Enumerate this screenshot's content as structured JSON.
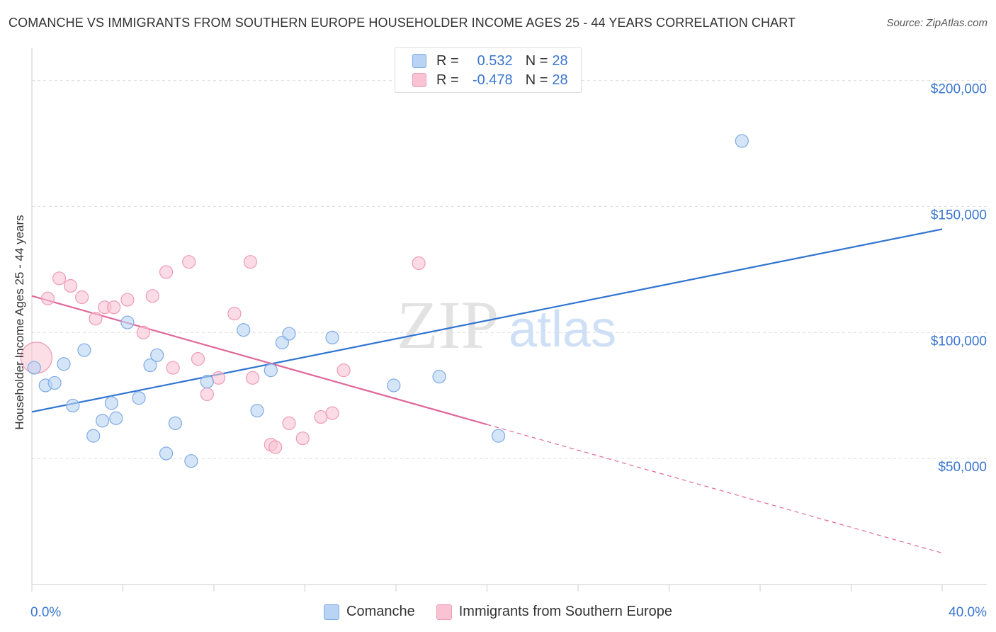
{
  "title": "COMANCHE VS IMMIGRANTS FROM SOUTHERN EUROPE HOUSEHOLDER INCOME AGES 25 - 44 YEARS CORRELATION CHART",
  "source": "Source: ZipAtlas.com",
  "watermark": {
    "zip": "ZIP",
    "atlas": "atlas"
  },
  "legend_top": [
    {
      "r_label": "R =",
      "r_value": "0.532",
      "n_label": "N =",
      "n_value": "28"
    },
    {
      "r_label": "R =",
      "r_value": "-0.478",
      "n_label": "N =",
      "n_value": "28"
    }
  ],
  "legend_bottom": [
    {
      "label": "Comanche"
    },
    {
      "label": "Immigrants from Southern Europe"
    }
  ],
  "colors": {
    "comanche_fill": "#b9d3f4",
    "comanche_stroke": "#7eaae6",
    "comanche_line": "#2f74d0",
    "immigrants_fill": "#f9c3d4",
    "immigrants_stroke": "#ef9bb5",
    "immigrants_line": "#e0679a",
    "tick_label": "#3a76d0",
    "grid": "#dddddd"
  },
  "chart_data": {
    "type": "scatter",
    "xlabel": "",
    "ylabel": "Householder Income Ages 25 - 44 years",
    "x_unit": "percent",
    "xlim": [
      0,
      40
    ],
    "ylim": [
      0,
      210000
    ],
    "x_tick_labels": [
      {
        "value": 0,
        "label": "0.0%"
      },
      {
        "value": 40,
        "label": "40.0%"
      }
    ],
    "y_tick_labels": [
      {
        "value": 50000,
        "label": "$50,000"
      },
      {
        "value": 100000,
        "label": "$100,000"
      },
      {
        "value": 150000,
        "label": "$150,000"
      },
      {
        "value": 200000,
        "label": "$200,000"
      }
    ],
    "grid": true,
    "series": [
      {
        "name": "Comanche",
        "points": [
          [
            0.1,
            86000
          ],
          [
            0.6,
            79000
          ],
          [
            1.0,
            80000
          ],
          [
            1.4,
            87500
          ],
          [
            1.8,
            71000
          ],
          [
            2.3,
            93000
          ],
          [
            2.7,
            59000
          ],
          [
            3.1,
            65000
          ],
          [
            3.5,
            72000
          ],
          [
            3.7,
            66000
          ],
          [
            4.2,
            104000
          ],
          [
            4.7,
            74000
          ],
          [
            5.2,
            87000
          ],
          [
            5.5,
            91000
          ],
          [
            5.9,
            52000
          ],
          [
            6.3,
            64000
          ],
          [
            7.0,
            49000
          ],
          [
            7.7,
            80500
          ],
          [
            9.3,
            101000
          ],
          [
            9.9,
            69000
          ],
          [
            10.5,
            85000
          ],
          [
            11.0,
            96000
          ],
          [
            11.3,
            99500
          ],
          [
            13.2,
            98000
          ],
          [
            15.9,
            79000
          ],
          [
            17.9,
            82500
          ],
          [
            20.5,
            59000
          ],
          [
            31.2,
            176000
          ]
        ],
        "trend": {
          "x": [
            0,
            40
          ],
          "y": [
            68500,
            141000
          ]
        }
      },
      {
        "name": "Immigrants from Southern Europe",
        "points": [
          [
            0.2,
            90000
          ],
          [
            0.7,
            113500
          ],
          [
            1.2,
            121500
          ],
          [
            1.7,
            118500
          ],
          [
            2.2,
            114000
          ],
          [
            2.8,
            105500
          ],
          [
            3.2,
            110000
          ],
          [
            3.6,
            110000
          ],
          [
            4.2,
            113000
          ],
          [
            4.9,
            100000
          ],
          [
            5.3,
            114500
          ],
          [
            5.9,
            124000
          ],
          [
            6.2,
            86000
          ],
          [
            6.9,
            128000
          ],
          [
            7.3,
            89500
          ],
          [
            7.7,
            75500
          ],
          [
            8.2,
            82000
          ],
          [
            8.9,
            107500
          ],
          [
            9.6,
            128000
          ],
          [
            9.7,
            82000
          ],
          [
            10.5,
            55500
          ],
          [
            10.7,
            54500
          ],
          [
            11.3,
            64000
          ],
          [
            11.9,
            58000
          ],
          [
            12.7,
            66500
          ],
          [
            13.2,
            68000
          ],
          [
            13.7,
            85000
          ],
          [
            17.0,
            127500
          ]
        ],
        "trend": {
          "x": [
            0,
            20
          ],
          "y": [
            114500,
            63500
          ]
        },
        "trend_dashed": {
          "x": [
            20,
            40
          ],
          "y": [
            63500,
            12500
          ]
        }
      }
    ]
  }
}
